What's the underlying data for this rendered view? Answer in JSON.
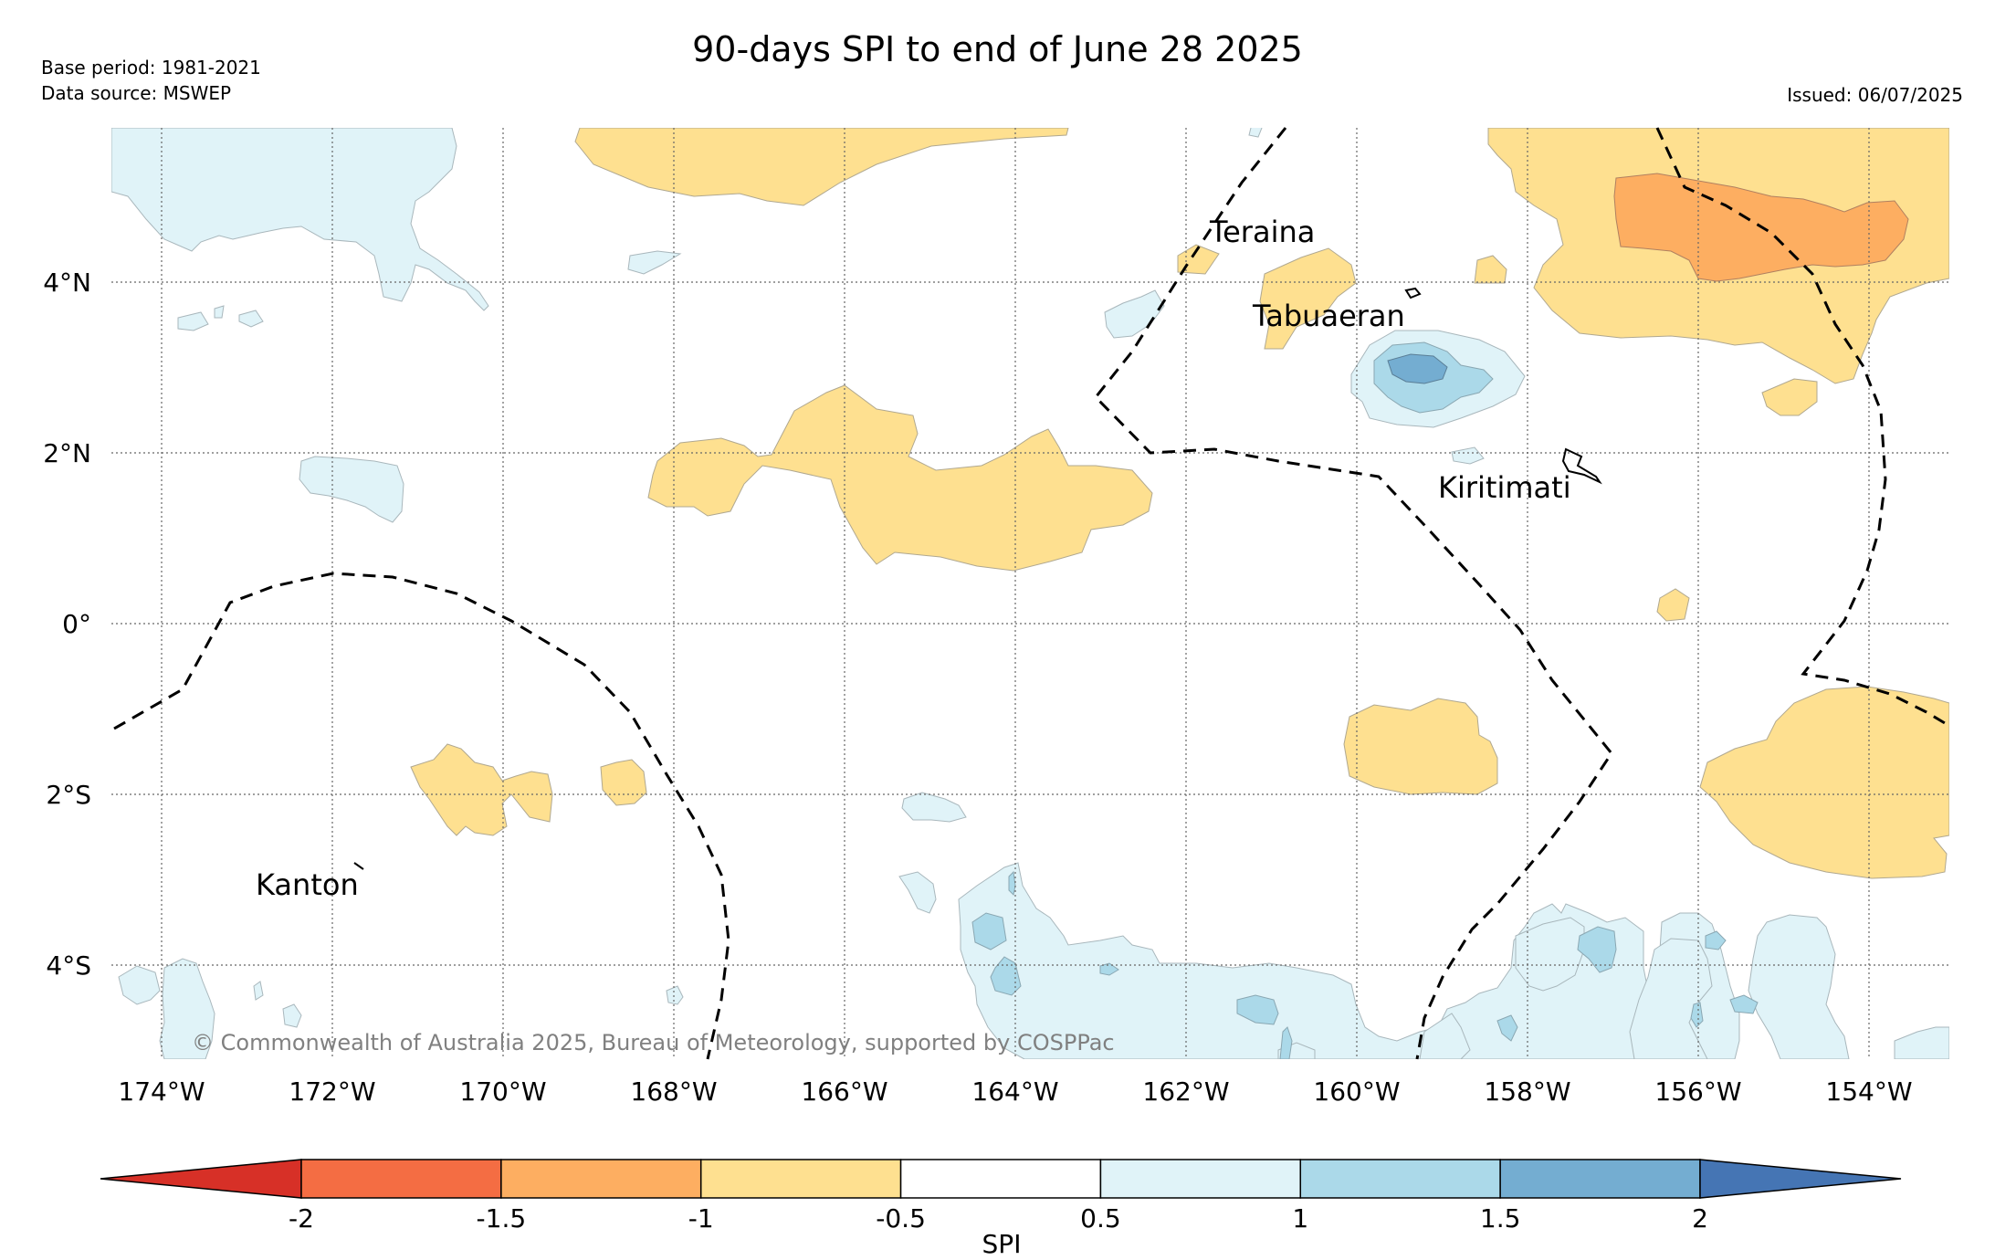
{
  "title": "90-days SPI to end of June 28 2025",
  "base_period": "Base period: 1981-2021",
  "data_source": "Data source: MSWEP",
  "issued": "Issued: 06/07/2025",
  "copyright": "© Commonwealth of Australia 2025, Bureau of Meteorology, supported by COSPPac",
  "lon_ticks": [
    "174°W",
    "172°W",
    "170°W",
    "168°W",
    "166°W",
    "164°W",
    "162°W",
    "160°W",
    "158°W",
    "156°W",
    "154°W"
  ],
  "lat_ticks": [
    "4°N",
    "2°N",
    "0°",
    "2°S",
    "4°S"
  ],
  "places": [
    "Teraina",
    "Tabuaeran",
    "Kiritimati",
    "Kanton"
  ],
  "colorbar": {
    "label": "SPI",
    "ticks": [
      "-2",
      "-1.5",
      "-1",
      "-0.5",
      "0.5",
      "1",
      "1.5",
      "2"
    ],
    "colors": [
      "#d73027",
      "#f46d43",
      "#fdae61",
      "#fee090",
      "#ffffff",
      "#e0f3f8",
      "#abd9e9",
      "#74add1",
      "#4575b4"
    ]
  },
  "colors": {
    "dry_moderate": "#fee090",
    "dry_severe": "#fdae61",
    "wet_moderate": "#e0f3f8",
    "wet_severe": "#abd9e9",
    "wet_very": "#74add1"
  }
}
